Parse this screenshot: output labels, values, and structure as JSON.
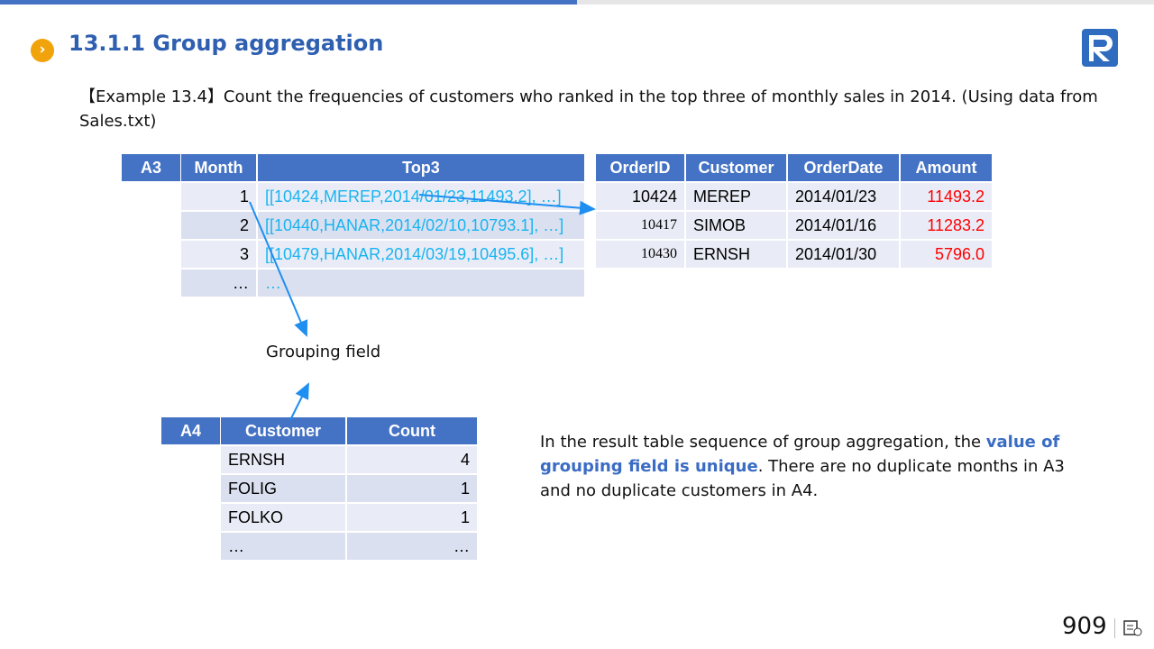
{
  "header": {
    "title": "13.1.1 Group aggregation"
  },
  "example": {
    "text": "【Example 13.4】Count the frequencies of customers who ranked in the top three of monthly sales in 2014. (Using data from Sales.txt)"
  },
  "table_a3": {
    "label": "A3",
    "columns": [
      "Month",
      "Top3"
    ],
    "rows": [
      [
        "1",
        "[[10424,MEREP,2014/01/23,11493.2], …]"
      ],
      [
        "2",
        "[[10440,HANAR,2014/02/10,10793.1], …]"
      ],
      [
        "3",
        "[[10479,HANAR,2014/03/19,10495.6], …]"
      ],
      [
        "…",
        "…"
      ]
    ]
  },
  "table_orders": {
    "columns": [
      "OrderID",
      "Customer",
      "OrderDate",
      "Amount"
    ],
    "rows": [
      [
        "10424",
        "MEREP",
        "2014/01/23",
        "11493.2"
      ],
      [
        "10417",
        "SIMOB",
        "2014/01/16",
        "11283.2"
      ],
      [
        "10430",
        "ERNSH",
        "2014/01/30",
        "5796.0"
      ]
    ]
  },
  "annotation": {
    "text": "Grouping field"
  },
  "table_a4": {
    "label": "A4",
    "columns": [
      "Customer",
      "Count"
    ],
    "rows": [
      [
        "ERNSH",
        "4"
      ],
      [
        "FOLIG",
        "1"
      ],
      [
        "FOLKO",
        "1"
      ],
      [
        "…",
        "…"
      ]
    ]
  },
  "note": {
    "before": "In the result table sequence of group aggregation, the ",
    "highlight": "value of grouping field is unique",
    "after": ". There are no duplicate months in A3 and no duplicate customers in A4."
  },
  "footer": {
    "page_number": "909"
  }
}
